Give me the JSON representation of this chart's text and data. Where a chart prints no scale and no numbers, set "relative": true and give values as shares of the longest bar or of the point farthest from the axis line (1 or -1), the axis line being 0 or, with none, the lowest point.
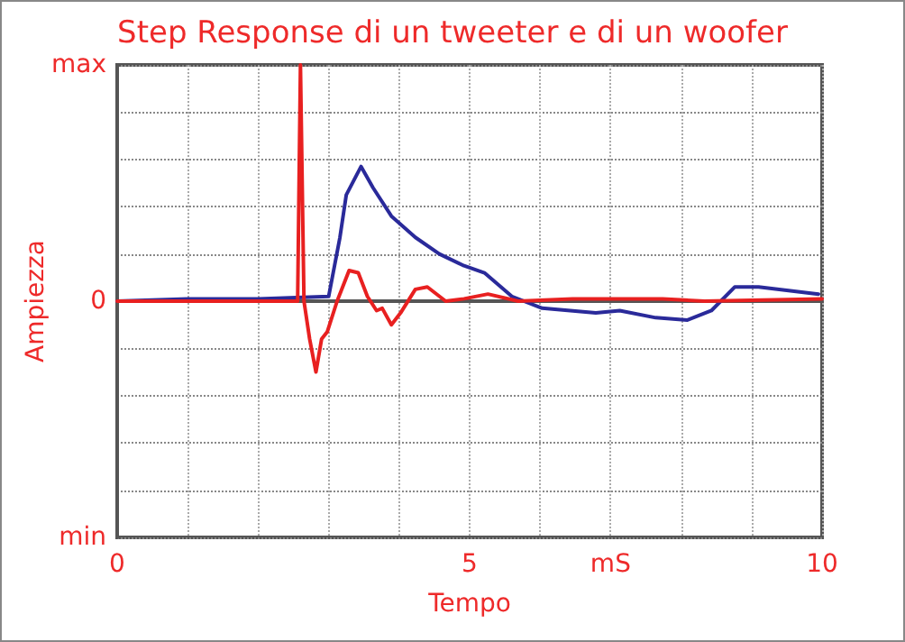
{
  "chart_data": {
    "type": "line",
    "title": "Step Response di un tweeter e di un woofer",
    "xlabel": "Tempo",
    "ylabel": "Ampiezza",
    "xlim": [
      0,
      10
    ],
    "xticks": [
      0,
      {
        "value": 1,
        "label": null
      },
      {
        "value": 2,
        "label": null
      },
      {
        "value": 3,
        "label": null
      },
      {
        "value": 4,
        "label": null
      },
      5,
      {
        "value": 6,
        "label": null
      },
      {
        "value": 7,
        "label": "mS"
      },
      {
        "value": 8,
        "label": null
      },
      {
        "value": 9,
        "label": null
      },
      10
    ],
    "relative": true,
    "annotations": [
      "max",
      "0",
      "min"
    ],
    "grid": true,
    "marker": "none",
    "line_style": "solid",
    "series": [
      {
        "color": "#2a2a9a",
        "x": [
          0,
          1,
          2,
          3.0,
          3.16,
          3.25,
          3.46,
          3.63,
          3.89,
          4.23,
          4.57,
          4.92,
          5.21,
          5.6,
          6.03,
          6.79,
          7.13,
          7.64,
          8.09,
          8.43,
          8.76,
          9.1,
          9.95
        ],
        "values": [
          0,
          0.01,
          0.01,
          0.02,
          0.27,
          0.45,
          0.57,
          0.48,
          0.36,
          0.27,
          0.2,
          0.15,
          0.12,
          0.02,
          -0.03,
          -0.05,
          -0.04,
          -0.07,
          -0.08,
          -0.04,
          0.06,
          0.06,
          0.03
        ]
      },
      {
        "color": "#e82020",
        "x": [
          0,
          1,
          2,
          2.56,
          2.6,
          2.65,
          2.73,
          2.82,
          2.9,
          2.98,
          3.12,
          3.29,
          3.42,
          3.55,
          3.68,
          3.76,
          3.89,
          4.02,
          4.23,
          4.4,
          4.66,
          4.92,
          5.26,
          5.69,
          6.46,
          7.74,
          8.33,
          10
        ],
        "values": [
          0,
          0,
          0,
          0,
          1,
          0,
          -0.16,
          -0.3,
          -0.16,
          -0.13,
          0,
          0.13,
          0.12,
          0.02,
          -0.04,
          -0.03,
          -0.1,
          -0.05,
          0.05,
          0.06,
          0,
          0.01,
          0.03,
          0,
          0.01,
          0.01,
          0,
          0.01
        ]
      }
    ]
  }
}
